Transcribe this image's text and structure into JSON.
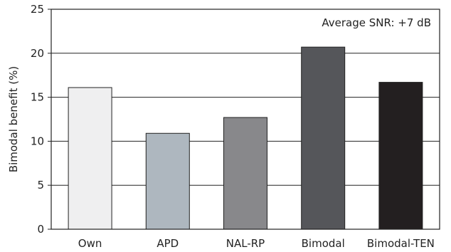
{
  "chart_data": {
    "type": "bar",
    "categories": [
      "Own",
      "APD",
      "NAL-RP",
      "Bimodal",
      "Bimodal-TEN"
    ],
    "values": [
      16.1,
      10.9,
      12.7,
      20.7,
      16.7
    ],
    "bar_colors": [
      "#efeff0",
      "#aeb7bf",
      "#88888b",
      "#55565a",
      "#231f20"
    ],
    "title": "",
    "xlabel": "",
    "ylabel": "Bimodal benefit (%)",
    "ylim": [
      0,
      25
    ],
    "yticks": [
      0,
      5,
      10,
      15,
      20,
      25
    ],
    "grid": "horizontal",
    "annotation": "Average SNR: +7 dB"
  }
}
